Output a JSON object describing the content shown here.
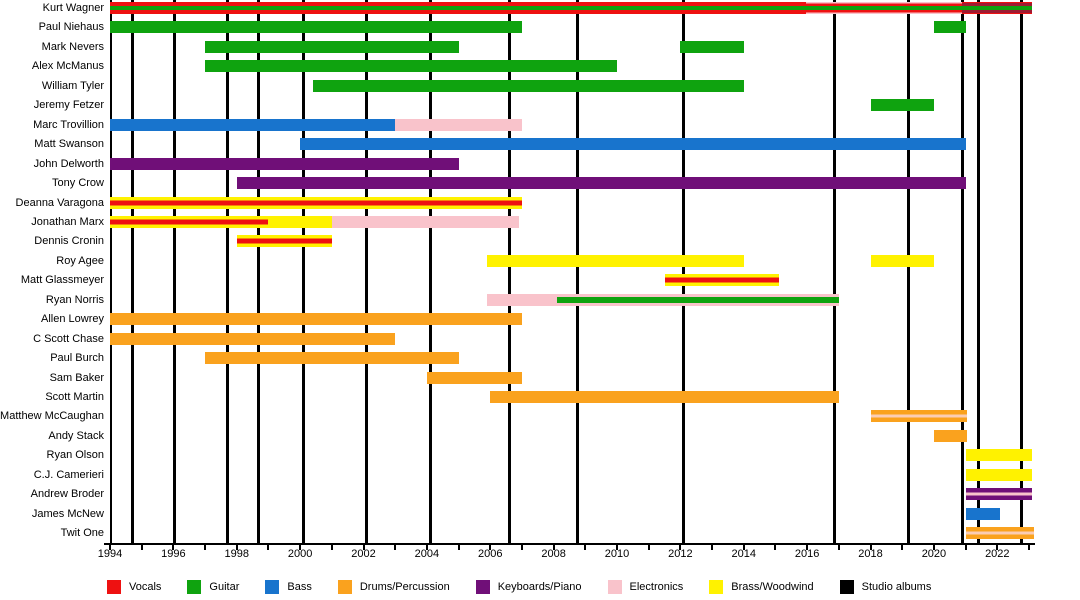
{
  "chart_data": {
    "type": "timeline",
    "description": "Band member timeline chart, 1994-2023, instruments color-coded, vertical black lines mark studio albums",
    "x_axis": {
      "start": 1994,
      "end": 2023.3,
      "minor_tick_years": [
        1994,
        1995,
        1996,
        1997,
        1998,
        1999,
        2000,
        2001,
        2002,
        2003,
        2004,
        2005,
        2006,
        2007,
        2008,
        2009,
        2010,
        2011,
        2012,
        2013,
        2014,
        2015,
        2016,
        2017,
        2018,
        2019,
        2020,
        2021,
        2022,
        2023
      ],
      "labeled_years": [
        "1994",
        "1996",
        "1998",
        "2000",
        "2002",
        "2004",
        "2006",
        "2008",
        "2010",
        "2012",
        "2014",
        "2016",
        "2018",
        "2020",
        "2022"
      ]
    },
    "palette": {
      "vocals": "#ee1111",
      "guitar": "#0fa30f",
      "bass": "#1874cd",
      "drums": "#faa21e",
      "keyboards": "#700f78",
      "electronics": "#f9c3cb",
      "brass": "#fff200",
      "albums": "#000000",
      "dark_red": "#9e1b32",
      "light_orange": "#fbcdb4"
    },
    "legend": [
      {
        "key": "vocals",
        "label": "Vocals"
      },
      {
        "key": "guitar",
        "label": "Guitar"
      },
      {
        "key": "bass",
        "label": "Bass"
      },
      {
        "key": "drums",
        "label": "Drums/Percussion"
      },
      {
        "key": "keyboards",
        "label": "Keyboards/Piano"
      },
      {
        "key": "electronics",
        "label": "Electronics"
      },
      {
        "key": "brass",
        "label": "Brass/Woodwind"
      },
      {
        "key": "albums",
        "label": "Studio albums"
      }
    ],
    "album_lines_years": [
      1994.7,
      1996.05,
      1997.7,
      1998.7,
      2000.1,
      2002.1,
      2004.1,
      2006.6,
      2008.75,
      2012.1,
      2016.85,
      2019.2,
      2020.9,
      2021.4,
      2022.75
    ],
    "members": [
      {
        "name": "Kurt Wagner",
        "segments": [
          {
            "start": 1994.0,
            "end": 2015.95,
            "stack": [
              [
                "vocals",
                4
              ],
              [
                "guitar",
                4
              ],
              [
                "vocals",
                4
              ]
            ]
          },
          {
            "start": 2015.95,
            "end": 2020.9,
            "stack": [
              [
                "electronics",
                1.5
              ],
              [
                "vocals",
                2.5
              ],
              [
                "guitar",
                4
              ],
              [
                "vocals",
                2.5
              ],
              [
                "electronics",
                1.5
              ]
            ]
          },
          {
            "start": 2020.9,
            "end": 2023.1,
            "stack": [
              [
                "vocals",
                1
              ],
              [
                "dark_red",
                3
              ],
              [
                "guitar",
                4
              ],
              [
                "dark_red",
                3
              ],
              [
                "vocals",
                1
              ]
            ]
          }
        ]
      },
      {
        "name": "Paul Niehaus",
        "segments": [
          {
            "start": 1994.0,
            "end": 2007.0,
            "color": "guitar"
          },
          {
            "start": 2020.0,
            "end": 2021.0,
            "color": "guitar"
          }
        ]
      },
      {
        "name": "Mark Nevers",
        "segments": [
          {
            "start": 1997.0,
            "end": 2005.0,
            "color": "guitar"
          },
          {
            "start": 2012.0,
            "end": 2014.0,
            "color": "guitar"
          }
        ]
      },
      {
        "name": "Alex McManus",
        "segments": [
          {
            "start": 1997.0,
            "end": 2010.0,
            "color": "guitar"
          }
        ]
      },
      {
        "name": "William Tyler",
        "segments": [
          {
            "start": 2000.4,
            "end": 2014.0,
            "color": "guitar"
          }
        ]
      },
      {
        "name": "Jeremy Fetzer",
        "segments": [
          {
            "start": 2018.0,
            "end": 2020.0,
            "color": "guitar"
          }
        ]
      },
      {
        "name": "Marc Trovillion",
        "segments": [
          {
            "start": 1994.0,
            "end": 2003.0,
            "color": "bass"
          },
          {
            "start": 2003.0,
            "end": 2007.0,
            "color": "electronics"
          }
        ]
      },
      {
        "name": "Matt Swanson",
        "segments": [
          {
            "start": 2000.0,
            "end": 2021.0,
            "color": "bass"
          }
        ]
      },
      {
        "name": "John Delworth",
        "segments": [
          {
            "start": 1994.0,
            "end": 2005.0,
            "color": "keyboards"
          }
        ]
      },
      {
        "name": "Tony Crow",
        "segments": [
          {
            "start": 1998.0,
            "end": 2021.0,
            "color": "keyboards"
          }
        ]
      },
      {
        "name": "Deanna Varagona",
        "segments": [
          {
            "start": 1994.0,
            "end": 2007.0,
            "stack": [
              [
                "brass",
                3
              ],
              [
                "vocals",
                5
              ],
              [
                "brass",
                3
              ]
            ]
          }
        ]
      },
      {
        "name": "Jonathan Marx",
        "segments": [
          {
            "start": 1994.0,
            "end": 1999.0,
            "stack": [
              [
                "brass",
                3
              ],
              [
                "vocals",
                5
              ],
              [
                "brass",
                3
              ]
            ]
          },
          {
            "start": 1999.0,
            "end": 2001.0,
            "color": "brass"
          },
          {
            "start": 2001.0,
            "end": 2006.9,
            "color": "electronics"
          }
        ]
      },
      {
        "name": "Dennis Cronin",
        "segments": [
          {
            "start": 1998.0,
            "end": 2001.0,
            "stack": [
              [
                "brass",
                3
              ],
              [
                "vocals",
                5
              ],
              [
                "brass",
                3
              ]
            ]
          }
        ]
      },
      {
        "name": "Roy Agee",
        "segments": [
          {
            "start": 2005.9,
            "end": 2014.0,
            "color": "brass"
          },
          {
            "start": 2018.0,
            "end": 2020.0,
            "color": "brass"
          }
        ]
      },
      {
        "name": "Matt Glassmeyer",
        "segments": [
          {
            "start": 2011.5,
            "end": 2015.1,
            "stack": [
              [
                "brass",
                3
              ],
              [
                "vocals",
                5
              ],
              [
                "brass",
                3
              ]
            ]
          }
        ]
      },
      {
        "name": "Ryan Norris",
        "segments": [
          {
            "start": 2005.9,
            "end": 2008.1,
            "color": "electronics"
          },
          {
            "start": 2008.1,
            "end": 2017.0,
            "stack": [
              [
                "electronics",
                1
              ],
              [
                "guitar",
                2
              ],
              [
                "electronics",
                1
              ]
            ]
          }
        ]
      },
      {
        "name": "Allen Lowrey",
        "segments": [
          {
            "start": 1994.0,
            "end": 2007.0,
            "color": "drums"
          }
        ]
      },
      {
        "name": "C Scott Chase",
        "segments": [
          {
            "start": 1994.0,
            "end": 2003.0,
            "color": "drums"
          }
        ]
      },
      {
        "name": "Paul Burch",
        "segments": [
          {
            "start": 1997.0,
            "end": 2005.0,
            "color": "drums"
          }
        ]
      },
      {
        "name": "Sam Baker",
        "segments": [
          {
            "start": 2004.0,
            "end": 2007.0,
            "color": "drums"
          }
        ]
      },
      {
        "name": "Scott Martin",
        "segments": [
          {
            "start": 2006.0,
            "end": 2017.0,
            "color": "drums"
          }
        ]
      },
      {
        "name": "Matthew McCaughan",
        "segments": [
          {
            "start": 2018.0,
            "end": 2021.05,
            "stack": [
              [
                "drums",
                4.5
              ],
              [
                "light_orange",
                3
              ],
              [
                "drums",
                4.5
              ]
            ]
          }
        ]
      },
      {
        "name": "Andy Stack",
        "segments": [
          {
            "start": 2020.0,
            "end": 2021.05,
            "color": "drums"
          }
        ]
      },
      {
        "name": "Ryan Olson",
        "segments": [
          {
            "start": 2021.0,
            "end": 2023.1,
            "color": "brass"
          }
        ]
      },
      {
        "name": "C.J. Camerieri",
        "segments": [
          {
            "start": 2021.0,
            "end": 2023.1,
            "color": "brass"
          }
        ]
      },
      {
        "name": "Andrew Broder",
        "segments": [
          {
            "start": 2021.0,
            "end": 2023.1,
            "stack": [
              [
                "keyboards",
                4.5
              ],
              [
                "electronics",
                3
              ],
              [
                "keyboards",
                4.5
              ]
            ]
          }
        ]
      },
      {
        "name": "James McNew",
        "segments": [
          {
            "start": 2021.0,
            "end": 2022.1,
            "color": "bass"
          }
        ]
      },
      {
        "name": "Twit One",
        "segments": [
          {
            "start": 2021.0,
            "end": 2023.15,
            "stack": [
              [
                "drums",
                4.5
              ],
              [
                "light_orange",
                3
              ],
              [
                "drums",
                4.5
              ]
            ]
          }
        ]
      }
    ]
  }
}
